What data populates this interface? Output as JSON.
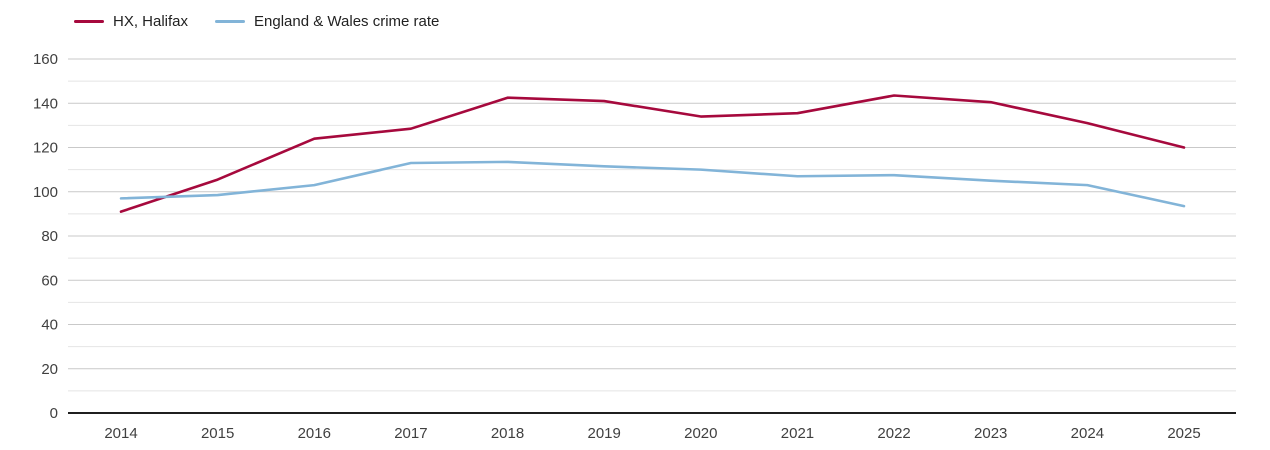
{
  "chart_data": {
    "type": "line",
    "title": "",
    "xlabel": "",
    "ylabel": "",
    "x": [
      2014,
      2015,
      2016,
      2017,
      2018,
      2019,
      2020,
      2021,
      2022,
      2023,
      2024,
      2025
    ],
    "series": [
      {
        "name": "HX, Halifax",
        "color": "#a6093d",
        "values": [
          91,
          105.5,
          124,
          128.5,
          142.5,
          141,
          134,
          135.5,
          143.5,
          140.5,
          131,
          120
        ]
      },
      {
        "name": "England & Wales crime rate",
        "color": "#82b4d8",
        "values": [
          97,
          98.5,
          103,
          113,
          113.5,
          111.5,
          110,
          107,
          107.5,
          105,
          103,
          93.5
        ]
      }
    ],
    "ylim": [
      0,
      160
    ],
    "ytick_interval": 20,
    "minor_grid_interval": 10,
    "grid": true,
    "legend_position": "top-left",
    "colors": {
      "major_grid": "#c9c9c9",
      "minor_grid": "#e4e4e4",
      "axis_line": "#1f1f1f",
      "tick_label": "#404040"
    }
  }
}
